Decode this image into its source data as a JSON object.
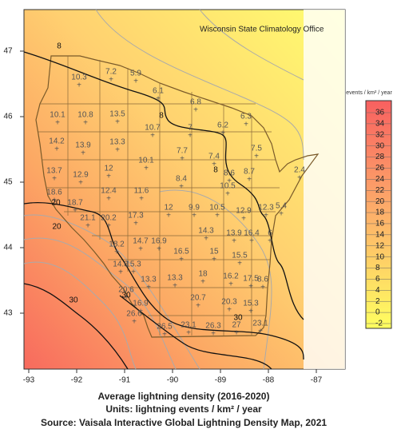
{
  "map": {
    "office": "Wisconsin State Climatology Office",
    "caption": [
      "Average lightning density (2016-2020)",
      "Units: lightning events / km² / year",
      "Source: Vaisala Interactive Global Lightning Density Map, 2021"
    ],
    "xticks": [
      -93,
      -92,
      -91,
      -90,
      -89,
      -88,
      -87
    ],
    "yticks": [
      47,
      46,
      45,
      44,
      43
    ],
    "colorbar_title": "events / km² / year",
    "colorbar_ticks": [
      36,
      34,
      32,
      30,
      28,
      26,
      24,
      22,
      20,
      18,
      16,
      14,
      12,
      10,
      8,
      6,
      4,
      2,
      0,
      -2
    ],
    "counties": [
      10.3,
      7.2,
      5.9,
      6.1,
      6.8,
      6.3,
      10.1,
      10.8,
      13.5,
      10.7,
      7,
      6.2,
      14.2,
      13.9,
      13.3,
      7.7,
      7.4,
      7.5,
      13.7,
      12.9,
      12,
      10.1,
      8.4,
      8.6,
      8.7,
      2.4,
      10.5,
      18.6,
      12.4,
      11.6,
      18.7,
      21.1,
      20.2,
      17.3,
      12,
      9.9,
      10.5,
      12.9,
      12.3,
      5.4,
      18.2,
      14.8,
      14.7,
      16.9,
      14.3,
      13.9,
      16.4,
      6,
      16.5,
      15,
      15.5,
      15.3,
      18,
      16.2,
      17.5,
      8.6,
      20.6,
      13.3,
      13.3,
      16.9,
      20.7,
      20.3,
      15.3,
      26.6,
      26.5,
      23.1,
      26.3,
      27,
      23.1
    ],
    "contour_labels": [
      8,
      8,
      8,
      20,
      20,
      30,
      30,
      30
    ]
  }
}
